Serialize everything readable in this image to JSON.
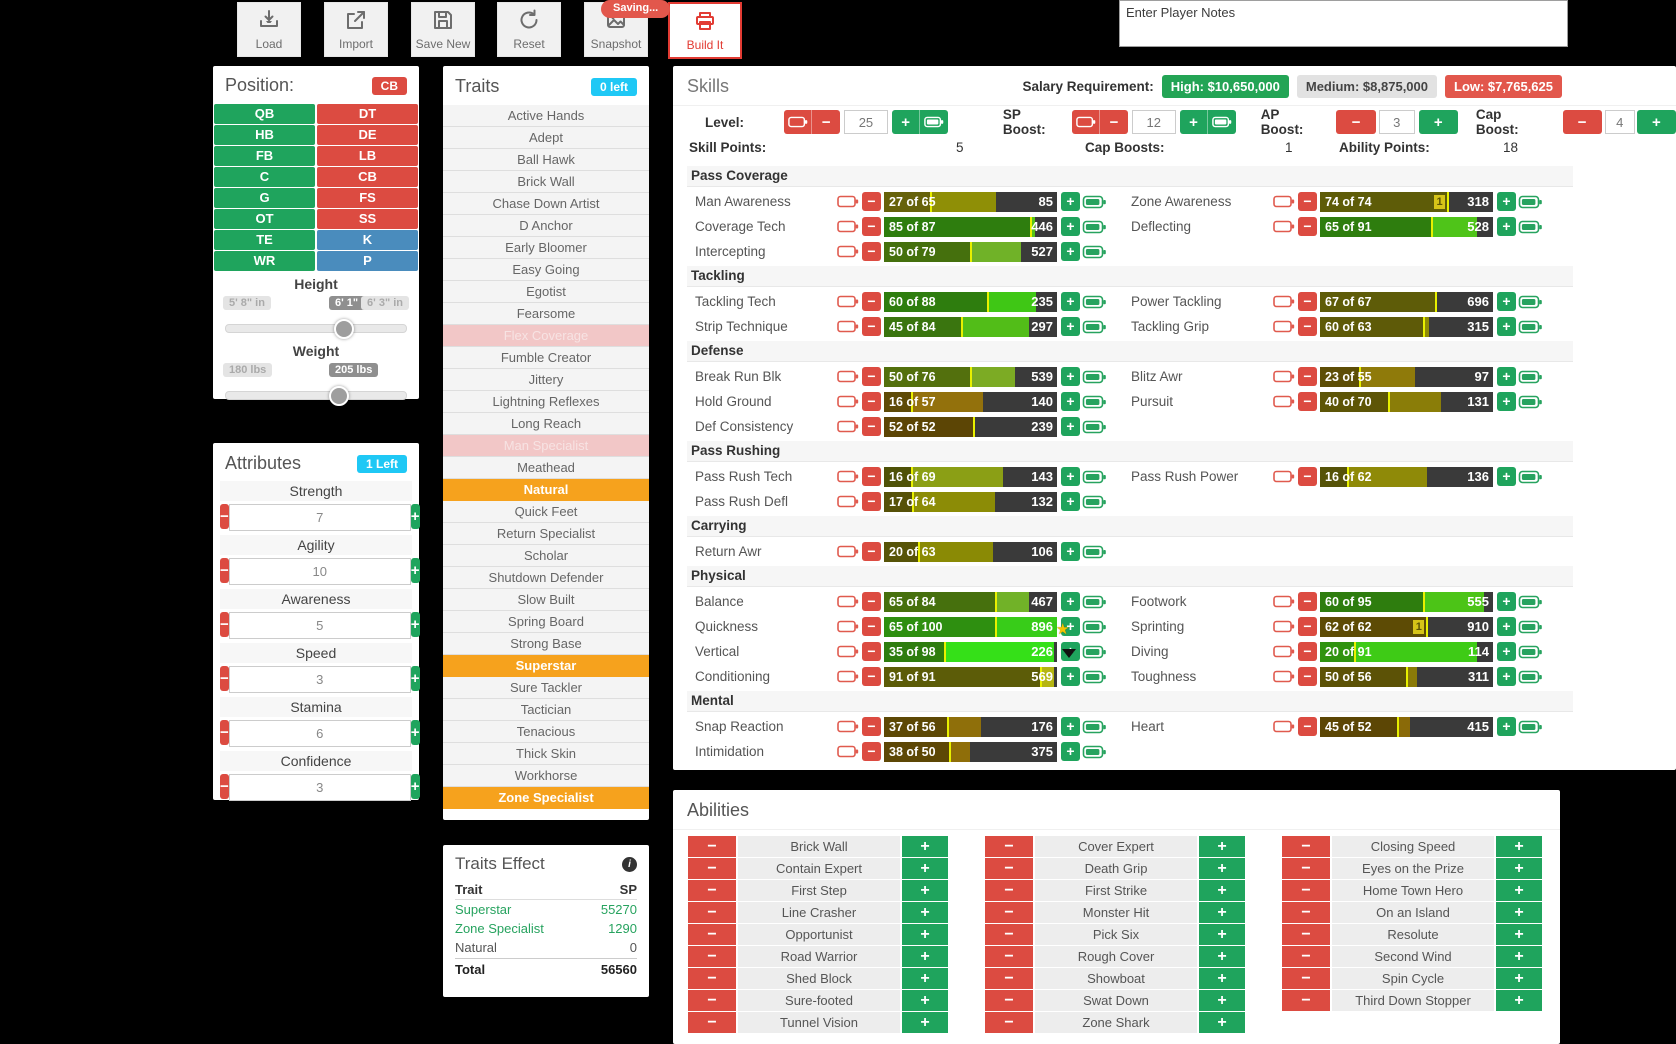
{
  "toolbar": {
    "buttons": [
      {
        "label": "Load",
        "icon": "download-icon"
      },
      {
        "label": "Import",
        "icon": "share-icon"
      },
      {
        "label": "Save New",
        "icon": "floppy-icon"
      },
      {
        "label": "Reset",
        "icon": "undo-icon"
      },
      {
        "label": "Snapshot",
        "icon": "image-icon"
      },
      {
        "label": "Build It",
        "icon": "printer-icon",
        "accent": true
      }
    ],
    "saving_badge": "Saving..."
  },
  "notes": {
    "placeholder": "Enter Player Notes"
  },
  "position": {
    "title": "Position:",
    "selected_badge": "CB",
    "grid": [
      [
        {
          "label": "QB",
          "color": "green"
        },
        {
          "label": "DT",
          "color": "red"
        }
      ],
      [
        {
          "label": "HB",
          "color": "green"
        },
        {
          "label": "DE",
          "color": "red"
        }
      ],
      [
        {
          "label": "FB",
          "color": "green"
        },
        {
          "label": "LB",
          "color": "red"
        }
      ],
      [
        {
          "label": "C",
          "color": "green"
        },
        {
          "label": "CB",
          "color": "red"
        }
      ],
      [
        {
          "label": "G",
          "color": "green"
        },
        {
          "label": "FS",
          "color": "red"
        }
      ],
      [
        {
          "label": "OT",
          "color": "green"
        },
        {
          "label": "SS",
          "color": "red"
        }
      ],
      [
        {
          "label": "TE",
          "color": "green"
        },
        {
          "label": "K",
          "color": "blue"
        }
      ],
      [
        {
          "label": "WR",
          "color": "green"
        },
        {
          "label": "P",
          "color": "blue"
        }
      ]
    ],
    "height": {
      "label": "Height",
      "min": "5' 8\" in",
      "current": "6' 1\" in",
      "max": "6' 3\" in",
      "handle_pct": 65
    },
    "weight": {
      "label": "Weight",
      "min": "180 lbs",
      "current": "205 lbs",
      "handle_pct": 62
    }
  },
  "attributes": {
    "title": "Attributes",
    "badge": "1 Left",
    "items": [
      {
        "name": "Strength",
        "value": "7"
      },
      {
        "name": "Agility",
        "value": "10"
      },
      {
        "name": "Awareness",
        "value": "5"
      },
      {
        "name": "Speed",
        "value": "3"
      },
      {
        "name": "Stamina",
        "value": "6"
      },
      {
        "name": "Confidence",
        "value": "3"
      }
    ]
  },
  "traits": {
    "title": "Traits",
    "badge": "0 left",
    "items": [
      {
        "label": "Active Hands",
        "state": "normal"
      },
      {
        "label": "Adept",
        "state": "normal"
      },
      {
        "label": "Ball Hawk",
        "state": "normal"
      },
      {
        "label": "Brick Wall",
        "state": "normal"
      },
      {
        "label": "Chase Down Artist",
        "state": "normal"
      },
      {
        "label": "D Anchor",
        "state": "normal"
      },
      {
        "label": "Early Bloomer",
        "state": "normal"
      },
      {
        "label": "Easy Going",
        "state": "normal"
      },
      {
        "label": "Egotist",
        "state": "normal"
      },
      {
        "label": "Fearsome",
        "state": "normal"
      },
      {
        "label": "Flex Coverage",
        "state": "disabled"
      },
      {
        "label": "Fumble Creator",
        "state": "normal"
      },
      {
        "label": "Jittery",
        "state": "normal"
      },
      {
        "label": "Lightning Reflexes",
        "state": "normal"
      },
      {
        "label": "Long Reach",
        "state": "normal"
      },
      {
        "label": "Man Specialist",
        "state": "disabled"
      },
      {
        "label": "Meathead",
        "state": "normal"
      },
      {
        "label": "Natural",
        "state": "selected"
      },
      {
        "label": "Quick Feet",
        "state": "normal"
      },
      {
        "label": "Return Specialist",
        "state": "normal"
      },
      {
        "label": "Scholar",
        "state": "normal"
      },
      {
        "label": "Shutdown Defender",
        "state": "normal"
      },
      {
        "label": "Slow Built",
        "state": "normal"
      },
      {
        "label": "Spring Board",
        "state": "normal"
      },
      {
        "label": "Strong Base",
        "state": "normal"
      },
      {
        "label": "Superstar",
        "state": "selected"
      },
      {
        "label": "Sure Tackler",
        "state": "normal"
      },
      {
        "label": "Tactician",
        "state": "normal"
      },
      {
        "label": "Tenacious",
        "state": "normal"
      },
      {
        "label": "Thick Skin",
        "state": "normal"
      },
      {
        "label": "Workhorse",
        "state": "normal"
      },
      {
        "label": "Zone Specialist",
        "state": "selected"
      }
    ]
  },
  "traits_effect": {
    "title": "Traits Effect",
    "columns": {
      "trait": "Trait",
      "sp": "SP"
    },
    "rows": [
      {
        "name": "Superstar",
        "sp": "55270",
        "highlight": true
      },
      {
        "name": "Zone Specialist",
        "sp": "1290",
        "highlight": true
      },
      {
        "name": "Natural",
        "sp": "0",
        "highlight": false
      }
    ],
    "total_label": "Total",
    "total_sp": "56560"
  },
  "skills": {
    "title": "Skills",
    "salary": {
      "label": "Salary Requirement:",
      "high": "High: $10,650,000",
      "medium": "Medium: $8,875,000",
      "low": "Low: $7,765,625"
    },
    "controls": {
      "level_label": "Level:",
      "level": "25",
      "sp_boost_label": "SP Boost:",
      "sp_boost": "12",
      "ap_boost_label": "AP Boost:",
      "ap_boost": "3",
      "cap_boost_label": "Cap Boost:",
      "cap_boost": "4"
    },
    "stats": {
      "skill_points_label": "Skill Points:",
      "skill_points": "5",
      "cap_boosts_label": "Cap Boosts:",
      "cap_boosts": "1",
      "ability_points_label": "Ability Points:",
      "ability_points": "18"
    },
    "sections": [
      {
        "name": "Pass Coverage",
        "rows": [
          [
            {
              "name": "Man Awareness",
              "cur": 27,
              "cap": 65,
              "cost": "85",
              "c1": "#66620a",
              "c2": "#8f8f06"
            },
            {
              "name": "Zone Awareness",
              "cur": 74,
              "cap": 74,
              "cost": "318",
              "c1": "#5e5c08",
              "c2": null,
              "badge": "1"
            }
          ],
          [
            {
              "name": "Coverage Tech",
              "cur": 85,
              "cap": 87,
              "cost": "446",
              "c1": "#2e7d0e",
              "c2": "#55c418"
            },
            {
              "name": "Deflecting",
              "cur": 65,
              "cap": 91,
              "cost": "528",
              "c1": "#2e7d0e",
              "c2": "#4fc419"
            }
          ],
          [
            {
              "name": "Intercepting",
              "cur": 50,
              "cap": 79,
              "cost": "527",
              "c1": "#45700d",
              "c2": "#70b228"
            },
            null
          ]
        ]
      },
      {
        "name": "Tackling",
        "rows": [
          [
            {
              "name": "Tackling Tech",
              "cur": 60,
              "cap": 88,
              "cost": "235",
              "c1": "#2e7d0e",
              "c2": "#3fc715"
            },
            {
              "name": "Power Tackling",
              "cur": 67,
              "cap": 67,
              "cost": "696",
              "c1": "#5e5c08",
              "c2": null
            }
          ],
          [
            {
              "name": "Strip Technique",
              "cur": 45,
              "cap": 84,
              "cost": "297",
              "c1": "#3a750f",
              "c2": "#52bd18"
            },
            {
              "name": "Tackling Grip",
              "cur": 60,
              "cap": 63,
              "cost": "315",
              "c1": "#5e5a08",
              "c2": "#8f8c06"
            }
          ]
        ]
      },
      {
        "name": "Defense",
        "rows": [
          [
            {
              "name": "Break Run Blk",
              "cur": 50,
              "cap": 76,
              "cost": "539",
              "c1": "#53700d",
              "c2": "#7cab24"
            },
            {
              "name": "Blitz Awr",
              "cur": 23,
              "cap": 55,
              "cost": "97",
              "c1": "#5d4d06",
              "c2": "#8f7a0a"
            }
          ],
          [
            {
              "name": "Hold Ground",
              "cur": 16,
              "cap": 57,
              "cost": "140",
              "c1": "#5e4a06",
              "c2": "#93710c"
            },
            {
              "name": "Pursuit",
              "cur": 40,
              "cap": 70,
              "cost": "131",
              "c1": "#5d5506",
              "c2": "#8a7d08"
            }
          ],
          [
            {
              "name": "Def Consistency",
              "cur": 52,
              "cap": 52,
              "cost": "239",
              "c1": "#5c4505",
              "c2": null
            },
            null
          ]
        ]
      },
      {
        "name": "Pass Rushing",
        "rows": [
          [
            {
              "name": "Pass Rush Tech",
              "cur": 16,
              "cap": 69,
              "cost": "143",
              "c1": "#4f5208",
              "c2": "#8b9f15"
            },
            {
              "name": "Pass Rush Power",
              "cur": 16,
              "cap": 62,
              "cost": "136",
              "c1": "#565308",
              "c2": "#8f8a08"
            }
          ],
          [
            {
              "name": "Pass Rush Defl",
              "cur": 17,
              "cap": 64,
              "cost": "132",
              "c1": "#565108",
              "c2": "#8c8c06"
            },
            null
          ]
        ]
      },
      {
        "name": "Carrying",
        "rows": [
          [
            {
              "name": "Return Awr",
              "cur": 20,
              "cap": 63,
              "cost": "106",
              "c1": "#575408",
              "c2": "#8a8a05"
            },
            null
          ]
        ]
      },
      {
        "name": "Physical",
        "rows": [
          [
            {
              "name": "Balance",
              "cur": 65,
              "cap": 84,
              "cost": "467",
              "c1": "#46700d",
              "c2": "#71b228"
            },
            {
              "name": "Footwork",
              "cur": 60,
              "cap": 95,
              "cost": "555",
              "c1": "#2e7d0e",
              "c2": "#4cc417"
            }
          ],
          [
            {
              "name": "Quickness",
              "cur": 65,
              "cap": 100,
              "cost": "896",
              "c1": "#2e8f10",
              "c2": "#38cc19"
            },
            {
              "name": "Sprinting",
              "cur": 62,
              "cap": 62,
              "cost": "910",
              "c1": "#5d4b05",
              "c2": null,
              "badge": "1"
            }
          ],
          [
            {
              "name": "Vertical",
              "cur": 35,
              "cap": 98,
              "cost": "226",
              "c1": "#2e7d0e",
              "c2": "#35e018"
            },
            {
              "name": "Diving",
              "cur": 20,
              "cap": 91,
              "cost": "114",
              "c1": "#2f930f",
              "c2": "#3ecb16"
            }
          ],
          [
            {
              "name": "Conditioning",
              "cur": 91,
              "cap": 91,
              "cost": "569",
              "c1": "#5c5c08",
              "c2": null,
              "extra_to": 98,
              "extra_color": "#b5b512"
            },
            {
              "name": "Toughness",
              "cur": 50,
              "cap": 56,
              "cost": "311",
              "c1": "#5c5206",
              "c2": "#8a7a08"
            }
          ]
        ]
      },
      {
        "name": "Mental",
        "rows": [
          [
            {
              "name": "Snap Reaction",
              "cur": 37,
              "cap": 56,
              "cost": "176",
              "c1": "#5d4805",
              "c2": "#8f6f0a"
            },
            {
              "name": "Heart",
              "cur": 45,
              "cap": 52,
              "cost": "415",
              "c1": "#5c4605",
              "c2": "#8a6a08"
            }
          ],
          [
            {
              "name": "Intimidation",
              "cur": 38,
              "cap": 50,
              "cost": "375",
              "c1": "#5d4705",
              "c2": "#8f6e09"
            },
            null
          ]
        ]
      }
    ]
  },
  "abilities": {
    "title": "Abilities",
    "columns": [
      [
        "Brick Wall",
        "Contain Expert",
        "First Step",
        "Line Crasher",
        "Opportunist",
        "Road Warrior",
        "Shed Block",
        "Sure-footed",
        "Tunnel Vision"
      ],
      [
        "Cover Expert",
        "Death Grip",
        "First Strike",
        "Monster Hit",
        "Pick Six",
        "Rough Cover",
        "Showboat",
        "Swat Down",
        "Zone Shark"
      ],
      [
        "Closing Speed",
        "Eyes on the Prize",
        "Home Town Hero",
        "On an Island",
        "Resolute",
        "Second Wind",
        "Spin Cycle",
        "Third Down Stopper"
      ]
    ]
  }
}
